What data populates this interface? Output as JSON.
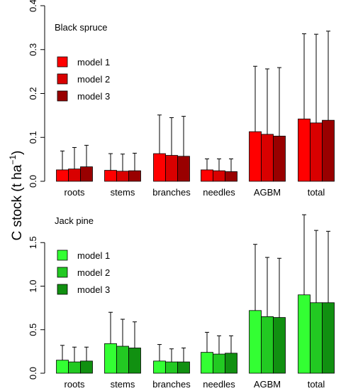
{
  "ylabel_parts": {
    "pre": "C stock (t ha",
    "sup": "−1",
    "post": ")"
  },
  "chart_data": [
    {
      "type": "bar",
      "panel_label": "Black spruce",
      "categories": [
        "roots",
        "stems",
        "branches",
        "needles",
        "AGBM",
        "total"
      ],
      "ylim": [
        0,
        0.4
      ],
      "yticks": [
        "0.0",
        "0.1",
        "0.2",
        "0.3",
        "0.4"
      ],
      "ytick_values": [
        0,
        0.1,
        0.2,
        0.3,
        0.4
      ],
      "grid": false,
      "error_bars": "upper",
      "legend_position": "upper-left",
      "series": [
        {
          "name": "model 1",
          "color": "#ff0000",
          "values": [
            0.026,
            0.025,
            0.063,
            0.026,
            0.113,
            0.142
          ],
          "upper": [
            0.069,
            0.063,
            0.151,
            0.051,
            0.262,
            0.336
          ]
        },
        {
          "name": "model 2",
          "color": "#d90000",
          "values": [
            0.028,
            0.023,
            0.059,
            0.024,
            0.107,
            0.133
          ],
          "upper": [
            0.077,
            0.062,
            0.145,
            0.051,
            0.256,
            0.335
          ]
        },
        {
          "name": "model 3",
          "color": "#990000",
          "values": [
            0.033,
            0.024,
            0.057,
            0.022,
            0.103,
            0.139
          ],
          "upper": [
            0.082,
            0.064,
            0.148,
            0.051,
            0.259,
            0.342
          ]
        }
      ]
    },
    {
      "type": "bar",
      "panel_label": "Jack pine",
      "categories": [
        "roots",
        "stems",
        "branches",
        "needles",
        "AGBM",
        "total"
      ],
      "ylim": [
        0,
        2.0
      ],
      "yticks": [
        "0.0",
        "0.5",
        "1.0",
        "1.5"
      ],
      "ytick_values": [
        0,
        0.5,
        1.0,
        1.5
      ],
      "grid": false,
      "error_bars": "upper",
      "legend_position": "upper-left",
      "series": [
        {
          "name": "model 1",
          "color": "#33ff33",
          "values": [
            0.15,
            0.34,
            0.14,
            0.24,
            0.72,
            0.9
          ],
          "upper": [
            0.32,
            0.7,
            0.33,
            0.47,
            1.48,
            1.82
          ]
        },
        {
          "name": "model 2",
          "color": "#22c922",
          "values": [
            0.13,
            0.31,
            0.13,
            0.22,
            0.65,
            0.81
          ],
          "upper": [
            0.3,
            0.62,
            0.28,
            0.43,
            1.33,
            1.64
          ]
        },
        {
          "name": "model 3",
          "color": "#119011",
          "values": [
            0.14,
            0.29,
            0.13,
            0.23,
            0.64,
            0.81
          ],
          "upper": [
            0.3,
            0.59,
            0.29,
            0.43,
            1.32,
            1.63
          ]
        }
      ]
    }
  ]
}
